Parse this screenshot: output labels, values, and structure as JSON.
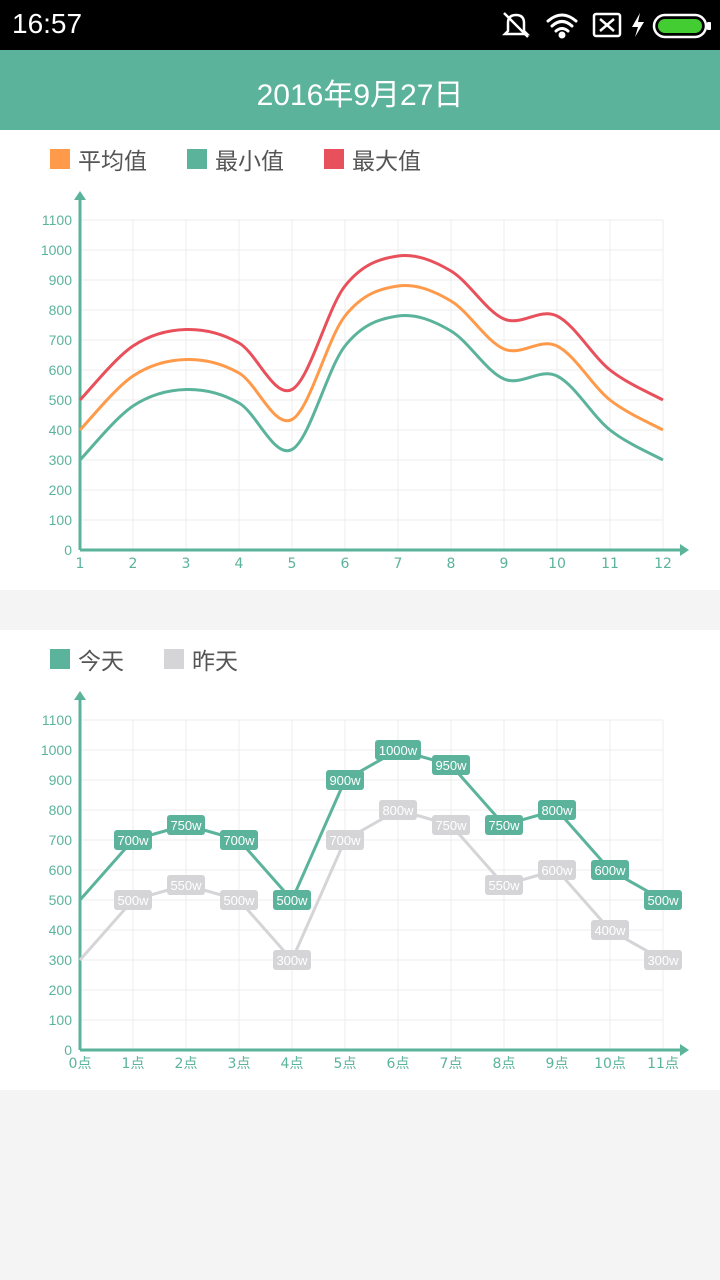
{
  "status_bar": {
    "time": "16:57",
    "icons": [
      "mute-icon",
      "wifi-icon",
      "no-sim-icon",
      "charging-icon",
      "battery-icon"
    ]
  },
  "header": {
    "title": "2016年9月27日",
    "color": "#5bb39b"
  },
  "chart_data": [
    {
      "type": "line",
      "x": [
        1,
        2,
        3,
        4,
        5,
        6,
        7,
        8,
        9,
        10,
        11,
        12
      ],
      "ylim": [
        0,
        1100
      ],
      "yticks": [
        0,
        100,
        200,
        300,
        400,
        500,
        600,
        700,
        800,
        900,
        1000,
        1100
      ],
      "smooth": true,
      "grid": true,
      "legend": "top-left",
      "series": [
        {
          "name": "平均值",
          "color": "#ff9a4a",
          "values": [
            400,
            580,
            635,
            590,
            435,
            780,
            880,
            830,
            670,
            680,
            500,
            400
          ]
        },
        {
          "name": "最小值",
          "color": "#5bb39b",
          "values": [
            300,
            480,
            535,
            490,
            335,
            680,
            780,
            730,
            570,
            580,
            400,
            300
          ]
        },
        {
          "name": "最大值",
          "color": "#e8505b",
          "values": [
            500,
            680,
            735,
            690,
            535,
            880,
            980,
            930,
            770,
            780,
            600,
            500
          ]
        }
      ]
    },
    {
      "type": "line",
      "categories": [
        "0点",
        "1点",
        "2点",
        "3点",
        "4点",
        "5点",
        "6点",
        "7点",
        "8点",
        "9点",
        "10点",
        "11点"
      ],
      "ylim": [
        0,
        1100
      ],
      "yticks": [
        0,
        100,
        200,
        300,
        400,
        500,
        600,
        700,
        800,
        900,
        1000,
        1100
      ],
      "smooth": false,
      "grid": true,
      "legend": "top-left",
      "series": [
        {
          "name": "今天",
          "color": "#5bb39b",
          "values": [
            500,
            700,
            750,
            700,
            500,
            900,
            1000,
            950,
            750,
            800,
            600,
            500
          ],
          "labels": [
            "",
            "700w",
            "750w",
            "700w",
            "500w",
            "900w",
            "1000w",
            "950w",
            "750w",
            "800w",
            "600w",
            "500w"
          ]
        },
        {
          "name": "昨天",
          "color": "#d5d5d8",
          "values": [
            300,
            500,
            550,
            500,
            300,
            700,
            800,
            750,
            550,
            600,
            400,
            300
          ],
          "labels": [
            "",
            "500w",
            "550w",
            "500w",
            "300w",
            "700w",
            "800w",
            "750w",
            "550w",
            "600w",
            "400w",
            "300w"
          ]
        }
      ]
    }
  ]
}
